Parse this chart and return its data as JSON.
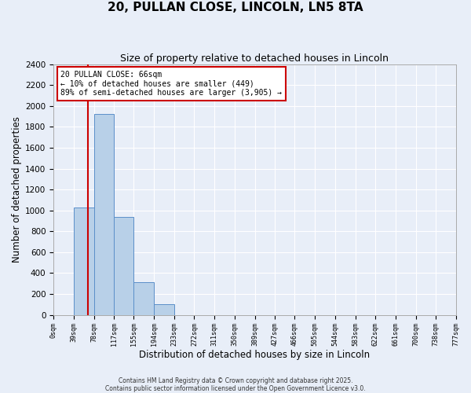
{
  "title": "20, PULLAN CLOSE, LINCOLN, LN5 8TA",
  "subtitle": "Size of property relative to detached houses in Lincoln",
  "xlabel": "Distribution of detached houses by size in Lincoln",
  "ylabel": "Number of detached properties",
  "bar_color": "#b8d0e8",
  "bar_edge_color": "#5b8fc9",
  "background_color": "#e8eef8",
  "fig_background_color": "#e8eef8",
  "grid_color": "#ffffff",
  "bins": [
    0,
    39,
    78,
    117,
    155,
    194,
    233,
    272,
    311,
    350,
    389,
    427,
    466,
    505,
    544,
    583,
    622,
    661,
    700,
    738,
    777
  ],
  "counts": [
    0,
    1030,
    1920,
    940,
    310,
    100,
    0,
    0,
    0,
    0,
    0,
    0,
    0,
    0,
    0,
    0,
    0,
    0,
    0,
    0
  ],
  "property_size": 66,
  "red_line_color": "#cc0000",
  "annotation_text": "20 PULLAN CLOSE: 66sqm\n← 10% of detached houses are smaller (449)\n89% of semi-detached houses are larger (3,905) →",
  "annotation_box_color": "#ffffff",
  "annotation_box_edge": "#cc0000",
  "ylim": [
    0,
    2400
  ],
  "yticks": [
    0,
    200,
    400,
    600,
    800,
    1000,
    1200,
    1400,
    1600,
    1800,
    2000,
    2200,
    2400
  ],
  "tick_labels": [
    "0sqm",
    "39sqm",
    "78sqm",
    "117sqm",
    "155sqm",
    "194sqm",
    "233sqm",
    "272sqm",
    "311sqm",
    "350sqm",
    "389sqm",
    "427sqm",
    "466sqm",
    "505sqm",
    "544sqm",
    "583sqm",
    "622sqm",
    "661sqm",
    "700sqm",
    "738sqm",
    "777sqm"
  ],
  "footer1": "Contains HM Land Registry data © Crown copyright and database right 2025.",
  "footer2": "Contains public sector information licensed under the Open Government Licence v3.0."
}
